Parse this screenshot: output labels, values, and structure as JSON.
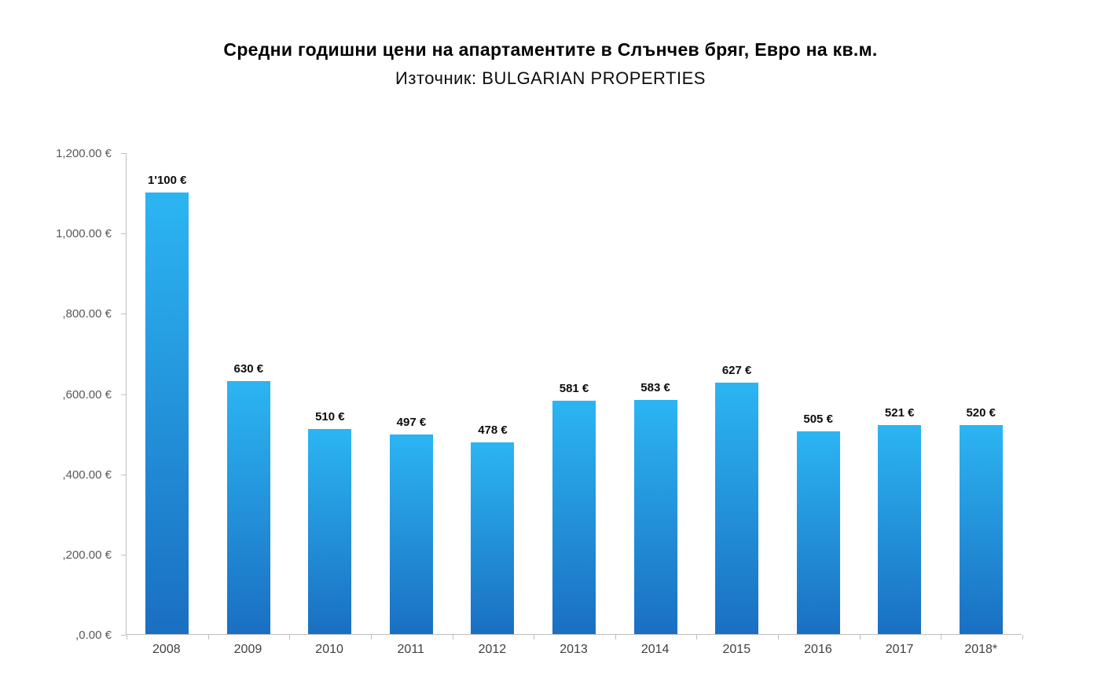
{
  "header": {
    "title": "Средни годишни цени на апартаментите в Слънчев бряг, Евро на кв.м.",
    "subtitle": "Източник: BULGARIAN PROPERTIES"
  },
  "chart_data": {
    "type": "bar",
    "title": "Средни годишни цени на апартаментите в Слънчев бряг, Евро на кв.м.",
    "subtitle": "Източник: BULGARIAN PROPERTIES",
    "categories": [
      "2008",
      "2009",
      "2010",
      "2011",
      "2012",
      "2013",
      "2014",
      "2015",
      "2016",
      "2017",
      "2018*"
    ],
    "values": [
      1100,
      630,
      510,
      497,
      478,
      581,
      583,
      627,
      505,
      521,
      520
    ],
    "bar_labels": [
      "1'100 €",
      "630 €",
      "510 €",
      "497 €",
      "478 €",
      "581 €",
      "583 €",
      "627 €",
      "505 €",
      "521 €",
      "520 €"
    ],
    "xlabel": "",
    "ylabel": "",
    "ylim": [
      0,
      1200
    ],
    "y_ticks": [
      {
        "value": 1200,
        "label": "1,200.00 €"
      },
      {
        "value": 1000,
        "label": "1,000.00 €"
      },
      {
        "value": 800,
        "label": ",800.00 €"
      },
      {
        "value": 600,
        "label": ",600.00 €"
      },
      {
        "value": 400,
        "label": ",400.00 €"
      },
      {
        "value": 200,
        "label": ",200.00 €"
      },
      {
        "value": 0,
        "label": ",0.00 €"
      }
    ],
    "grid": false,
    "legend": false,
    "colors": {
      "bar_gradient_top": "#2cb5f2",
      "bar_gradient_bottom": "#1a6fc2",
      "axis": "#bfbfbf",
      "tick_label": "#595959",
      "category_label": "#404040",
      "value_label": "#0d0d0d",
      "background": "#ffffff"
    }
  }
}
